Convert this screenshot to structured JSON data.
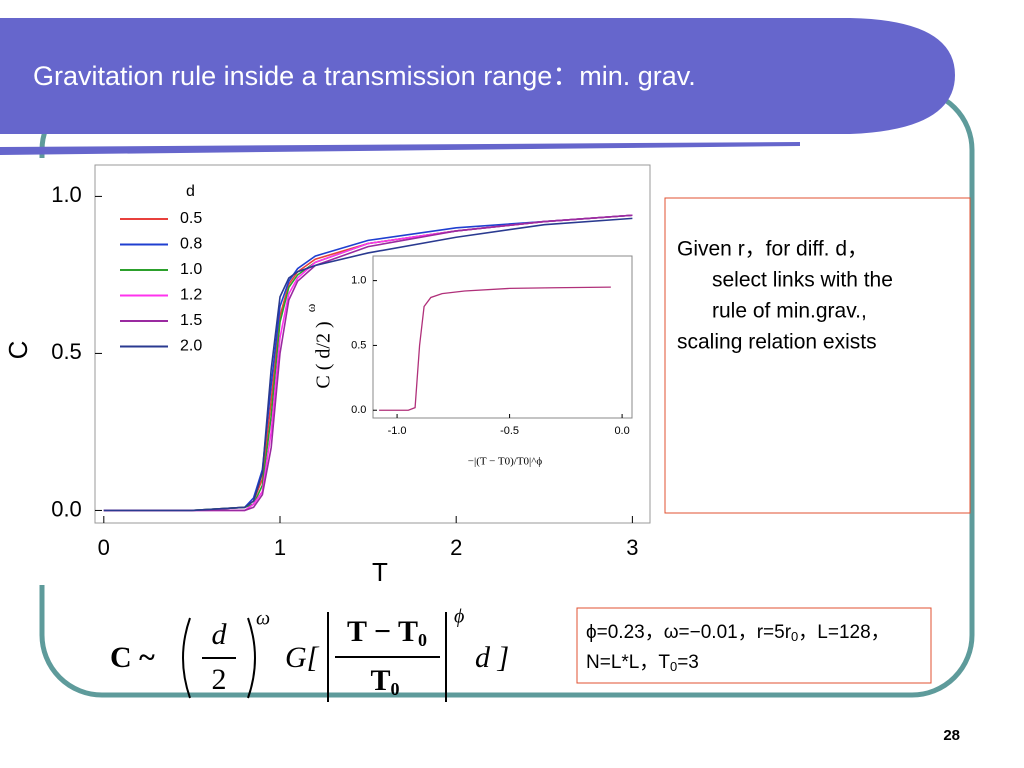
{
  "title": "Gravitation rule inside a transmission range：min. grav.",
  "note": [
    "Given r，for diff. d，",
    "select links with the",
    "rule of min.grav.,",
    "scaling relation exists"
  ],
  "params": {
    "line1": [
      "ϕ=0.23，ω=−0.01，r=5r",
      "0",
      "，L=128，"
    ],
    "line2": [
      "N=L*L，T",
      "0",
      "=3"
    ]
  },
  "formula": {
    "lhs": "C ~",
    "num": "d",
    "den": "2",
    "exp1": "ω",
    "g": "G[",
    "tnum": "T − T",
    "tnumsub": "0",
    "tden": "T",
    "tdensub": "0",
    "exp2": "ϕ",
    "tail": "d ]"
  },
  "page_number": "28",
  "chart_data": [
    {
      "type": "line",
      "x_label": "T",
      "y_label": "C",
      "legend_title": "d",
      "legend": "upper left",
      "x": [
        0,
        0.5,
        0.8,
        0.85,
        0.9,
        0.95,
        1.0,
        1.05,
        1.1,
        1.2,
        1.5,
        2.0,
        2.5,
        3.0
      ],
      "series": [
        {
          "name": "0.5",
          "color": "#e8403c",
          "values": [
            0,
            0,
            0.01,
            0.03,
            0.1,
            0.35,
            0.62,
            0.72,
            0.76,
            0.8,
            0.85,
            0.89,
            0.92,
            0.94
          ]
        },
        {
          "name": "0.8",
          "color": "#1f3fd0",
          "values": [
            0,
            0,
            0.01,
            0.04,
            0.13,
            0.4,
            0.65,
            0.73,
            0.77,
            0.81,
            0.86,
            0.9,
            0.92,
            0.94
          ]
        },
        {
          "name": "1.0",
          "color": "#2ca02c",
          "values": [
            0,
            0,
            0.01,
            0.02,
            0.08,
            0.3,
            0.6,
            0.71,
            0.75,
            0.79,
            0.85,
            0.89,
            0.92,
            0.94
          ]
        },
        {
          "name": "1.2",
          "color": "#ff33ee",
          "values": [
            0,
            0,
            0,
            0.02,
            0.06,
            0.25,
            0.55,
            0.69,
            0.74,
            0.79,
            0.85,
            0.89,
            0.92,
            0.94
          ]
        },
        {
          "name": "1.5",
          "color": "#9a2aa0",
          "values": [
            0,
            0,
            0,
            0.01,
            0.05,
            0.2,
            0.5,
            0.67,
            0.73,
            0.78,
            0.84,
            0.89,
            0.92,
            0.94
          ]
        },
        {
          "name": "2.0",
          "color": "#2a3a90",
          "values": [
            0,
            0,
            0.01,
            0.03,
            0.12,
            0.45,
            0.68,
            0.74,
            0.76,
            0.78,
            0.82,
            0.87,
            0.91,
            0.93
          ]
        }
      ],
      "xlim": [
        -0.05,
        3.1
      ],
      "ylim": [
        -0.04,
        1.1
      ],
      "xticks": [
        0,
        1,
        2,
        3
      ],
      "yticks": [
        {
          "value": 0,
          "label": "0.0"
        },
        {
          "value": 0.5,
          "label": "0.5"
        },
        {
          "value": 1,
          "label": "1.0"
        }
      ]
    },
    {
      "type": "line",
      "x_label": "−|(T − T0)/T0|^ϕ",
      "y_label": "C ( d/2 )",
      "y_label_exp": "ω",
      "x": [
        -1.08,
        -1.0,
        -0.95,
        -0.92,
        -0.9,
        -0.88,
        -0.85,
        -0.8,
        -0.7,
        -0.5,
        -0.3,
        -0.05
      ],
      "series": [
        {
          "color": "#b0307a",
          "values": [
            0,
            0,
            0,
            0.02,
            0.5,
            0.8,
            0.87,
            0.9,
            0.92,
            0.94,
            0.945,
            0.95
          ]
        }
      ],
      "xlim": [
        -1.107,
        0.044
      ],
      "ylim": [
        -0.06,
        1.19
      ],
      "xticks": [
        {
          "value": -1,
          "label": "-1.0"
        },
        {
          "value": -0.5,
          "label": "-0.5"
        },
        {
          "value": 0,
          "label": "0.0"
        }
      ],
      "yticks": [
        {
          "value": 0,
          "label": "0.0"
        },
        {
          "value": 0.5,
          "label": "0.5"
        },
        {
          "value": 1,
          "label": "1.0"
        }
      ]
    }
  ]
}
